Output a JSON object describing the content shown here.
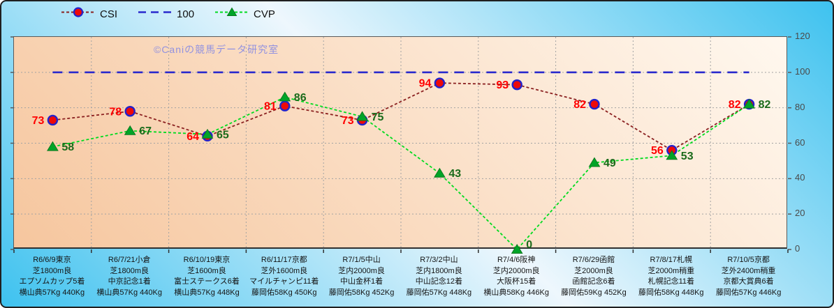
{
  "watermark": "©Caniの競馬データ研究室",
  "legend": {
    "items": [
      {
        "label": "CSI"
      },
      {
        "label": "100"
      },
      {
        "label": "CVP"
      }
    ]
  },
  "chart_data": {
    "type": "line",
    "title": "",
    "xlabel": "",
    "ylabel": "",
    "ylim": [
      0,
      120
    ],
    "yticks": [
      0,
      20,
      40,
      60,
      80,
      100,
      120
    ],
    "grid": true,
    "legend_position": "top",
    "categories": [
      [
        "R6/6/9東京",
        "芝1800m良",
        "エプソムカップ5着",
        "横山典57Kg 440Kg"
      ],
      [
        "R6/7/21小倉",
        "芝1800m良",
        "中京記念1着",
        "横山典57Kg 440Kg"
      ],
      [
        "R6/10/19東京",
        "芝1600m良",
        "富士ステークス6着",
        "横山典57Kg 448Kg"
      ],
      [
        "R6/11/17京都",
        "芝外1600m良",
        "マイルチャンピ11着",
        "藤岡佑58Kg 450Kg"
      ],
      [
        "R7/1/5中山",
        "芝内2000m良",
        "中山金杯1着",
        "藤岡佑58Kg 452Kg"
      ],
      [
        "R7/3/2中山",
        "芝内1800m良",
        "中山記念12着",
        "藤岡佑57Kg 448Kg"
      ],
      [
        "R7/4/6阪神",
        "芝内2000m良",
        "大阪杯15着",
        "横山典58Kg 446Kg"
      ],
      [
        "R7/6/29函館",
        "芝2000m良",
        "函館記念6着",
        "藤岡佑59Kg 452Kg"
      ],
      [
        "R7/8/17札幌",
        "芝2000m稍重",
        "札幌記念11着",
        "藤岡佑58Kg 448Kg"
      ],
      [
        "R7/10/5京都",
        "芝外2400m稍重",
        "京都大賞典6着",
        "藤岡佑57Kg 446Kg"
      ]
    ],
    "series": [
      {
        "name": "CSI",
        "values": [
          73,
          78,
          64,
          81,
          73,
          94,
          93,
          82,
          56,
          82
        ],
        "line_color": "#8b2020",
        "marker": "circle",
        "marker_fill": "#ee0909",
        "marker_edge": "#2222cc",
        "label_color": "#ff0000",
        "label_side": "left"
      },
      {
        "name": "100",
        "values": [
          100,
          100,
          100,
          100,
          100,
          100,
          100,
          100,
          100,
          100
        ],
        "line_color": "#2a2acd",
        "marker": "none",
        "show_labels": false
      },
      {
        "name": "CVP",
        "values": [
          58,
          67,
          65,
          86,
          75,
          43,
          0,
          49,
          53,
          82
        ],
        "line_color": "#00db1f",
        "marker": "triangle",
        "marker_fill": "#00a428",
        "marker_edge": "#0b7a1e",
        "label_color": "#1b6b1b",
        "label_side": "right"
      }
    ]
  }
}
